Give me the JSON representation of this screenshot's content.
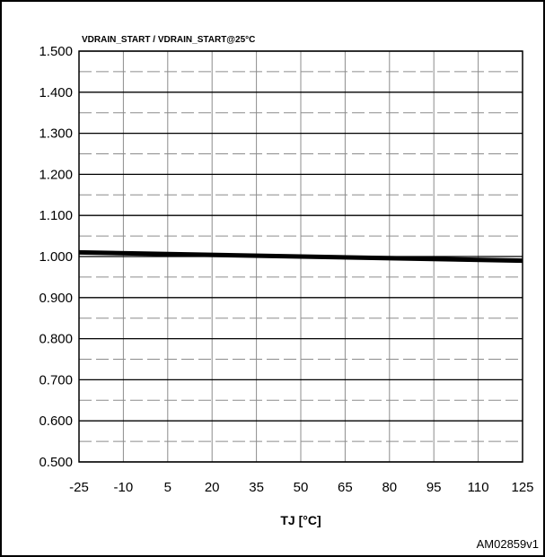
{
  "chart_data": {
    "type": "line",
    "title": "",
    "ylabel": "VDRAIN_START / VDRAIN_START@25°C",
    "xlabel": "TJ [°C]",
    "xlim": [
      -25,
      125
    ],
    "ylim": [
      0.5,
      1.5
    ],
    "x_ticks": [
      "-25",
      "-10",
      "5",
      "20",
      "35",
      "50",
      "65",
      "80",
      "95",
      "110",
      "125"
    ],
    "y_ticks": [
      "0.500",
      "0.600",
      "0.700",
      "0.800",
      "0.900",
      "1.000",
      "1.100",
      "1.200",
      "1.300",
      "1.400",
      "1.500"
    ],
    "grid": true,
    "series": [
      {
        "x": [
          -25,
          125
        ],
        "y": [
          1.01,
          0.99
        ],
        "color": "#000000"
      }
    ],
    "annotation": "AM02859v1"
  }
}
